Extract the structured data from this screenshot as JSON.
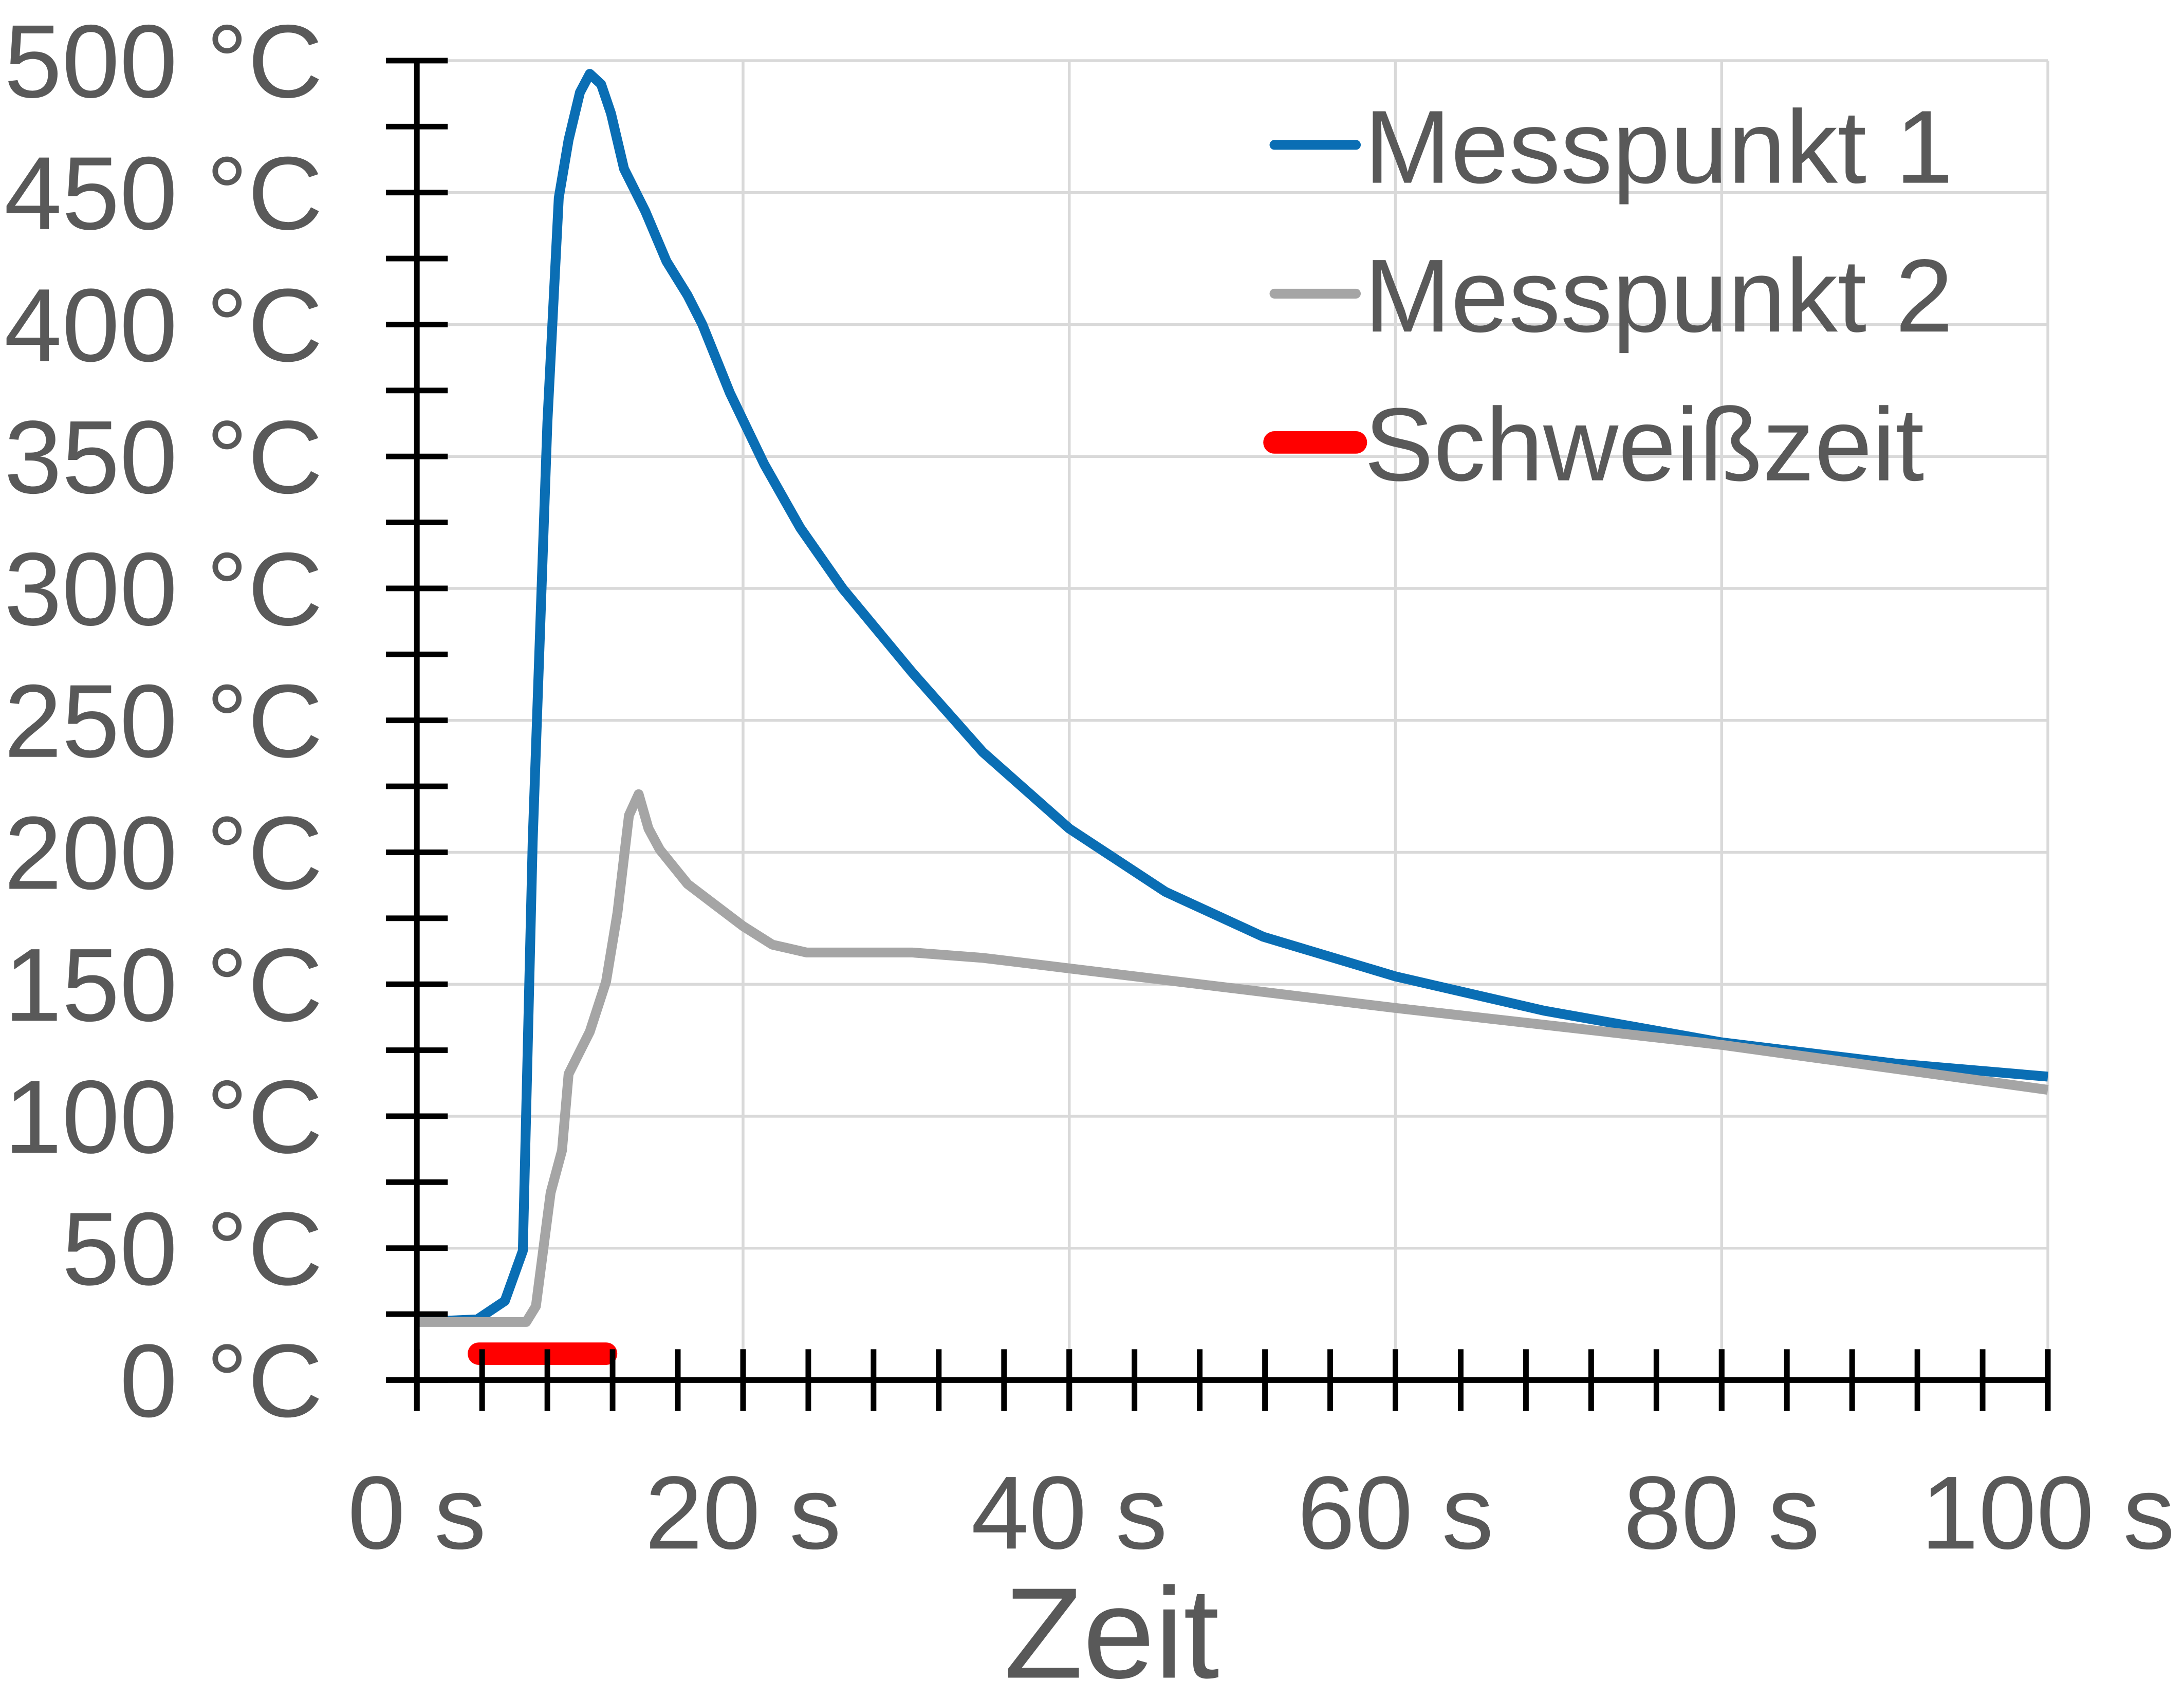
{
  "chart_data": {
    "type": "line",
    "title": "",
    "xlabel": "Zeit",
    "ylabel": "",
    "xlim": [
      0,
      100
    ],
    "ylim": [
      0,
      500
    ],
    "x_unit": "s",
    "y_unit": "°C",
    "x_ticks": [
      "0 s",
      "20 s",
      "40 s",
      "60 s",
      "80 s",
      "100 s"
    ],
    "y_ticks": [
      "0 °C",
      "50 °C",
      "100 °C",
      "150 °C",
      "200 °C",
      "250 °C",
      "300 °C",
      "350 °C",
      "400 °C",
      "450 °C",
      "500 °C"
    ],
    "grid": true,
    "legend_position": "top-right",
    "series": [
      {
        "name": "Messpunkt 1",
        "color": "#0a6eb4",
        "x": [
          0,
          3.7,
          5.4,
          6.5,
          7.1,
          8.0,
          8.7,
          9.3,
          10.0,
          10.6,
          11.3,
          11.9,
          12.7,
          14.0,
          15.3,
          16.6,
          17.5,
          19.2,
          21.3,
          23.5,
          26.1,
          30.4,
          34.7,
          40,
          45.9,
          51.9,
          60,
          69.1,
          80,
          90.6,
          100
        ],
        "y": [
          22,
          23,
          30,
          49,
          204,
          363,
          448,
          470,
          488,
          495,
          491,
          480,
          459,
          443,
          424,
          411,
          400,
          374,
          347,
          323,
          300,
          268,
          238,
          209,
          185,
          168,
          153,
          140,
          128,
          120,
          115
        ]
      },
      {
        "name": "Messpunkt 2",
        "color": "#a5a5a5",
        "x": [
          0,
          6.7,
          7.3,
          8.2,
          8.9,
          9.3,
          10.6,
          11.6,
          12.3,
          13.0,
          13.6,
          14.2,
          14.9,
          16.6,
          18.3,
          20,
          21.8,
          23.9,
          30.4,
          34.7,
          40,
          60,
          80,
          100
        ],
        "y": [
          22,
          22,
          28,
          71,
          87,
          116,
          132,
          151,
          177,
          214,
          222,
          209,
          201,
          188,
          180,
          172,
          165,
          162,
          162,
          160,
          156,
          141,
          127,
          110
        ]
      },
      {
        "name": "Schweißzeit",
        "color": "#ff0000",
        "x": [
          3.8,
          11.6
        ],
        "y": [
          10,
          10
        ]
      }
    ]
  }
}
